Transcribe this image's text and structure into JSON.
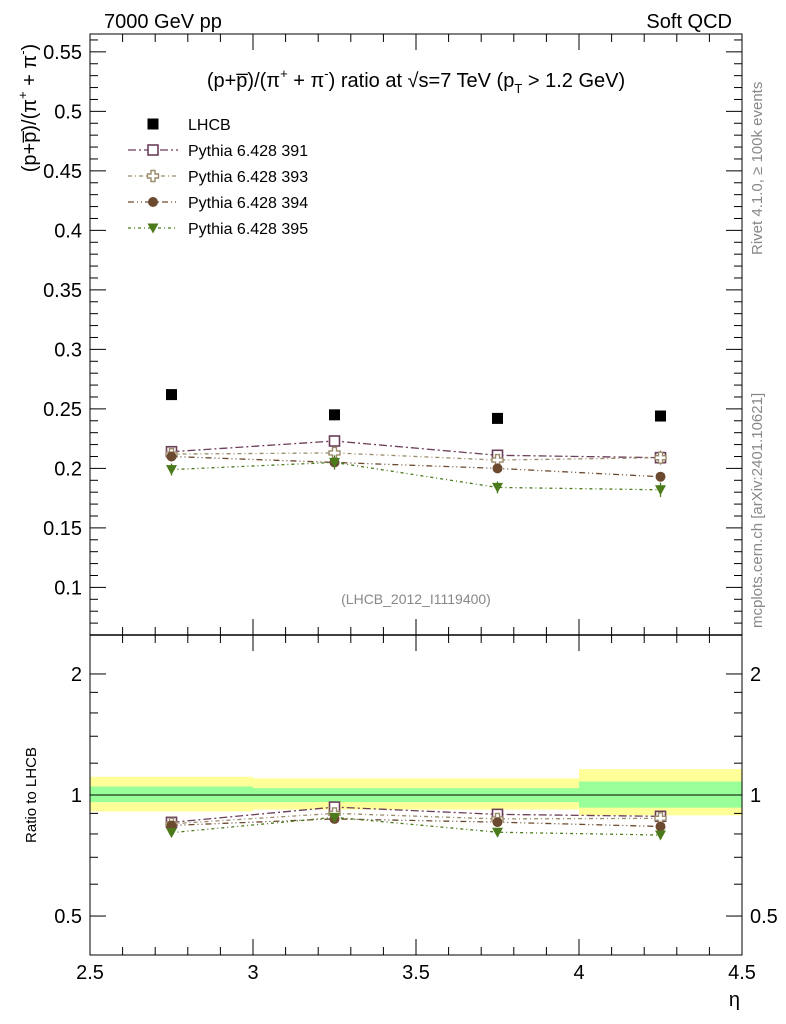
{
  "header": {
    "left": "7000 GeV pp",
    "right": "Soft QCD"
  },
  "side_labels": {
    "rivet": "Rivet 4.1.0, ≥ 100k events",
    "mcplots": "mcplots.cern.ch [arXiv:2401.10621]"
  },
  "colors": {
    "data": "#000000",
    "p391": "#6b3e5a",
    "p393": "#9a8a6a",
    "p394": "#6b4a30",
    "p395": "#4a7a1a",
    "band_inner": "#99ff99",
    "band_outer": "#ffff99"
  },
  "chart_data": [
    {
      "type": "scatter",
      "panel": "main",
      "title": "(p+p̅)/(π⁺ + π⁻) ratio at √s=7 TeV (p_T > 1.2 GeV)",
      "title_parts": {
        "pre": "(p+p̅)/(π",
        "plus": "+",
        "mid": " + π",
        "minus": "-",
        "post": ") ratio at √s=7 TeV (p",
        "sub": "T",
        "tail": " > 1.2 GeV)"
      },
      "ylabel": "(p+p̅)/(π⁺ + π⁻)",
      "ylabel_parts": {
        "pre": "(p+p̅)/(π",
        "plus": "+",
        "mid": " + π",
        "minus": "-",
        "post": ")"
      },
      "xlim": [
        2.5,
        4.5
      ],
      "ylim": [
        0.06,
        0.565
      ],
      "yticks": [
        0.1,
        0.15,
        0.2,
        0.25,
        0.3,
        0.35,
        0.4,
        0.45,
        0.5,
        0.55
      ],
      "ytick_labels": [
        "0.1",
        "0.15",
        "0.2",
        "0.25",
        "0.3",
        "0.35",
        "0.4",
        "0.45",
        "0.5",
        "0.55"
      ],
      "watermark": "(LHCB_2012_I1119400)",
      "x": [
        2.75,
        3.25,
        3.75,
        4.25
      ],
      "series": [
        {
          "name": "LHCB",
          "marker": "square-filled",
          "values": [
            0.262,
            0.245,
            0.242,
            0.244
          ]
        },
        {
          "name": "Pythia 6.428 391",
          "marker": "square-open",
          "values": [
            0.214,
            0.223,
            0.211,
            0.209
          ],
          "errors": [
            0.003,
            0.003,
            0.003,
            0.003
          ]
        },
        {
          "name": "Pythia 6.428 393",
          "marker": "cross-open",
          "values": [
            0.212,
            0.213,
            0.207,
            0.209
          ],
          "errors": [
            0.003,
            0.003,
            0.003,
            0.006
          ]
        },
        {
          "name": "Pythia 6.428 394",
          "marker": "circle-filled",
          "values": [
            0.21,
            0.205,
            0.2,
            0.193
          ],
          "errors": [
            0.003,
            0.003,
            0.004,
            0.003
          ]
        },
        {
          "name": "Pythia 6.428 395",
          "marker": "triangle-down-filled",
          "values": [
            0.199,
            0.205,
            0.184,
            0.182
          ],
          "errors": [
            0.005,
            0.006,
            0.005,
            0.006
          ]
        }
      ]
    },
    {
      "type": "scatter",
      "panel": "ratio",
      "ylabel": "Ratio to LHCB",
      "xlabel": "η",
      "ylim": [
        0.4,
        2.5
      ],
      "yscale": "log",
      "yticks": [
        0.5,
        1,
        2
      ],
      "ytick_labels": [
        "0.5",
        "1",
        "2"
      ],
      "xticks": [
        2.5,
        3,
        3.5,
        4,
        4.5
      ],
      "xtick_labels": [
        "2.5",
        "3",
        "3.5",
        "4",
        "4.5"
      ],
      "bins": [
        [
          2.5,
          3.0
        ],
        [
          3.0,
          3.5
        ],
        [
          3.5,
          4.0
        ],
        [
          4.0,
          4.5
        ]
      ],
      "band_inner": [
        [
          0.96,
          1.05
        ],
        [
          0.96,
          1.04
        ],
        [
          0.96,
          1.04
        ],
        [
          0.93,
          1.08
        ]
      ],
      "band_outer": [
        [
          0.91,
          1.11
        ],
        [
          0.92,
          1.1
        ],
        [
          0.92,
          1.1
        ],
        [
          0.89,
          1.16
        ]
      ],
      "series": [
        {
          "name": "Pythia 6.428 391",
          "values": [
            0.855,
            0.933,
            0.895,
            0.885
          ]
        },
        {
          "name": "Pythia 6.428 393",
          "values": [
            0.848,
            0.9,
            0.872,
            0.875
          ]
        },
        {
          "name": "Pythia 6.428 394",
          "values": [
            0.84,
            0.872,
            0.856,
            0.835
          ]
        },
        {
          "name": "Pythia 6.428 395",
          "values": [
            0.806,
            0.88,
            0.808,
            0.795
          ]
        }
      ]
    }
  ]
}
